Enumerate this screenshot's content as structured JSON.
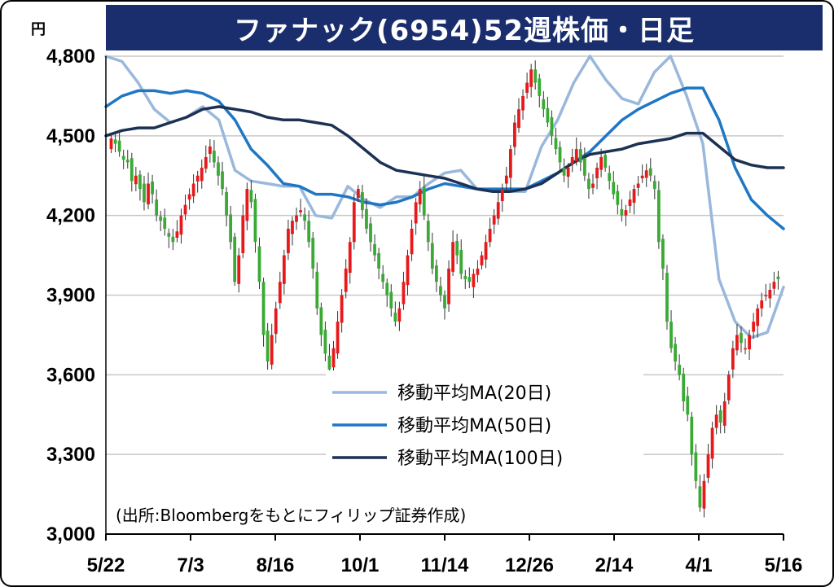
{
  "title": "ファナック(6954)52週株価・日足",
  "chart_data": {
    "type": "candlestick",
    "title": "ファナック(6954)52週株価・日足",
    "unit_label": "円",
    "ylim": [
      3000,
      4800
    ],
    "y_ticks": [
      4800,
      4500,
      4200,
      3900,
      3600,
      3300,
      3000
    ],
    "y_tick_labels": [
      "4,800",
      "4,500",
      "4,200",
      "3,900",
      "3,600",
      "3,300",
      "3,000"
    ],
    "x_tick_labels": [
      "5/22",
      "7/3",
      "8/16",
      "10/1",
      "11/14",
      "12/26",
      "2/14",
      "4/1",
      "5/16"
    ],
    "grid": "horizontal",
    "up_color": "#e8191b",
    "down_color": "#3aaa35",
    "candles_close": [
      4490,
      4470,
      4440,
      4410,
      4400,
      4330,
      4350,
      4300,
      4250,
      4320,
      4280,
      4200,
      4180,
      4150,
      4120,
      4100,
      4140,
      4200,
      4240,
      4280,
      4320,
      4350,
      4380,
      4420,
      4460,
      4400,
      4350,
      4300,
      4200,
      4100,
      3950,
      4050,
      4200,
      4300,
      4250,
      4100,
      3950,
      3750,
      3650,
      3750,
      3850,
      3950,
      4050,
      4150,
      4180,
      4200,
      4220,
      4180,
      4100,
      4000,
      3850,
      3750,
      3680,
      3620,
      3700,
      3800,
      3900,
      4000,
      4100,
      4250,
      4300,
      4220,
      4150,
      4100,
      4050,
      4000,
      3950,
      3900,
      3850,
      3800,
      3850,
      3950,
      4050,
      4150,
      4250,
      4300,
      4200,
      4100,
      4000,
      3950,
      3900,
      3850,
      4000,
      4100,
      4050,
      3980,
      3960,
      3950,
      3980,
      4000,
      4050,
      4100,
      4150,
      4200,
      4250,
      4300,
      4350,
      4450,
      4550,
      4600,
      4650,
      4700,
      4750,
      4700,
      4650,
      4600,
      4550,
      4500,
      4450,
      4400,
      4350,
      4380,
      4420,
      4450,
      4400,
      4350,
      4300,
      4320,
      4380,
      4420,
      4380,
      4330,
      4280,
      4240,
      4200,
      4220,
      4260,
      4300,
      4320,
      4350,
      4370,
      4350,
      4300,
      4100,
      4000,
      3800,
      3700,
      3650,
      3600,
      3500,
      3450,
      3300,
      3200,
      3100,
      3200,
      3300,
      3400,
      3450,
      3420,
      3500,
      3600,
      3700,
      3750,
      3720,
      3700,
      3750,
      3800,
      3850,
      3880,
      3900,
      3920,
      3950,
      3960
    ],
    "series": [
      {
        "name": "移動平均MA(20日)",
        "color": "#9ab8dc",
        "values": [
          4830,
          4780,
          4700,
          4600,
          4550,
          4570,
          4610,
          4560,
          4370,
          4330,
          4320,
          4310,
          4310,
          4200,
          4190,
          4310,
          4260,
          4230,
          4270,
          4270,
          4320,
          4360,
          4370,
          4300,
          4290,
          4290,
          4290,
          4460,
          4560,
          4700,
          4880,
          4710,
          4640,
          4620,
          4740,
          4810,
          4650,
          4470,
          3960,
          3800,
          3740,
          3760,
          3930
        ]
      },
      {
        "name": "移動平均MA(50日)",
        "color": "#1f77c4",
        "values": [
          4610,
          4650,
          4670,
          4670,
          4660,
          4670,
          4660,
          4630,
          4560,
          4450,
          4390,
          4320,
          4310,
          4280,
          4280,
          4270,
          4250,
          4240,
          4250,
          4270,
          4300,
          4320,
          4310,
          4300,
          4300,
          4300,
          4300,
          4330,
          4360,
          4400,
          4440,
          4500,
          4560,
          4600,
          4630,
          4660,
          4680,
          4680,
          4560,
          4380,
          4260,
          4200,
          4150
        ]
      },
      {
        "name": "移動平均MA(100日)",
        "color": "#1c3153",
        "values": [
          4500,
          4520,
          4530,
          4530,
          4550,
          4570,
          4600,
          4610,
          4600,
          4590,
          4570,
          4560,
          4560,
          4550,
          4540,
          4500,
          4450,
          4400,
          4370,
          4360,
          4350,
          4340,
          4320,
          4300,
          4290,
          4290,
          4300,
          4320,
          4360,
          4400,
          4430,
          4440,
          4450,
          4470,
          4480,
          4490,
          4510,
          4510,
          4460,
          4410,
          4390,
          4380,
          4380
        ]
      }
    ],
    "legend": [
      "移動平均MA(20日)",
      "移動平均MA(50日)",
      "移動平均MA(100日)"
    ],
    "legend_position": "bottom-center"
  },
  "source_note": "(出所:Bloombergをもとにフィリップ証券作成)"
}
